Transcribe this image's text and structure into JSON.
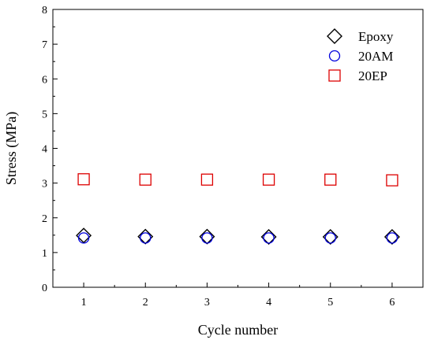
{
  "chart_data": {
    "type": "scatter",
    "title": "",
    "xlabel": "Cycle number",
    "ylabel": "Stress (MPa)",
    "xlim": [
      0.5,
      6.5
    ],
    "ylim": [
      0,
      8
    ],
    "xticks": [
      "1",
      "2",
      "3",
      "4",
      "5",
      "6"
    ],
    "yticks": [
      "0",
      "1",
      "2",
      "3",
      "4",
      "5",
      "6",
      "7",
      "8"
    ],
    "grid": false,
    "legend_position": "top-right",
    "x": [
      1,
      2,
      3,
      4,
      5,
      6
    ],
    "series": [
      {
        "name": "Epoxy",
        "marker": "diamond",
        "color": "#000000",
        "values": [
          1.49,
          1.46,
          1.46,
          1.45,
          1.45,
          1.45
        ]
      },
      {
        "name": "20AM",
        "marker": "circle",
        "color": "#0000dd",
        "values": [
          1.42,
          1.42,
          1.42,
          1.42,
          1.42,
          1.42
        ]
      },
      {
        "name": "20EP",
        "marker": "square",
        "color": "#dd0000",
        "values": [
          3.11,
          3.1,
          3.1,
          3.1,
          3.1,
          3.08
        ]
      }
    ]
  }
}
